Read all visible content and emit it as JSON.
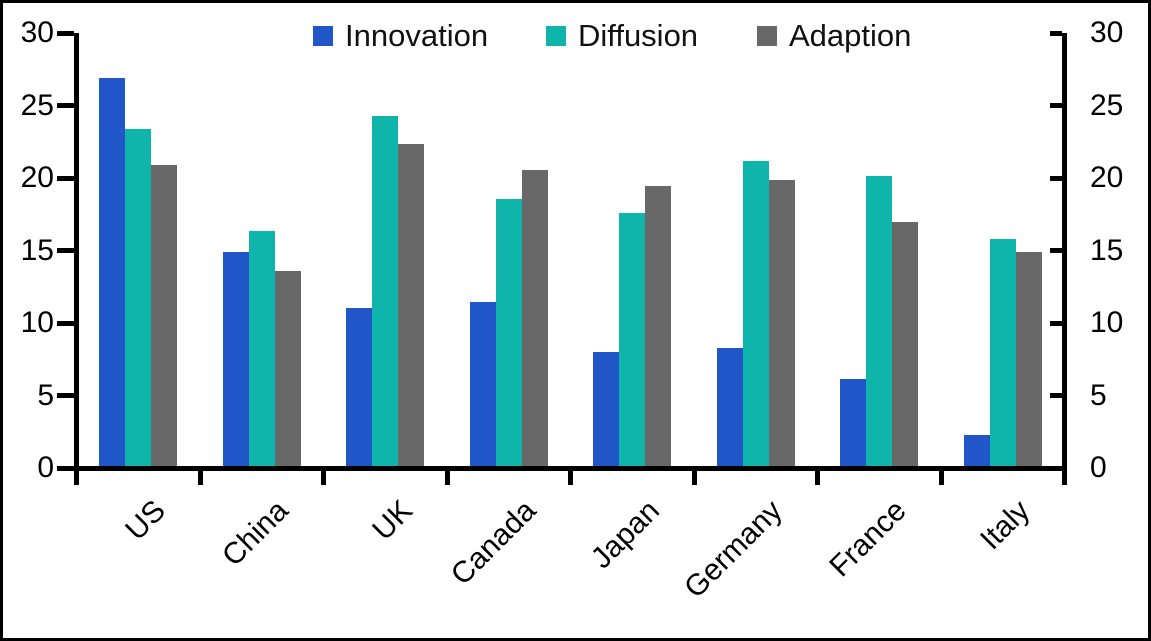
{
  "chart_data": {
    "type": "bar",
    "categories": [
      "US",
      "China",
      "UK",
      "Canada",
      "Japan",
      "Germany",
      "France",
      "Italy"
    ],
    "series": [
      {
        "name": "Innovation",
        "color": "#2156C8",
        "values": [
          26.8,
          14.8,
          11.0,
          11.4,
          7.9,
          8.2,
          6.1,
          2.2
        ]
      },
      {
        "name": "Diffusion",
        "color": "#0FB5AA",
        "values": [
          23.3,
          16.3,
          24.2,
          18.5,
          17.5,
          21.1,
          20.1,
          15.7
        ]
      },
      {
        "name": "Adaption",
        "color": "#686868",
        "values": [
          20.8,
          13.5,
          22.3,
          20.5,
          19.4,
          19.8,
          16.9,
          14.8
        ]
      }
    ],
    "title": "",
    "xlabel": "",
    "ylabel": "",
    "ylim": [
      0,
      30
    ],
    "yticks": [
      0,
      5,
      10,
      15,
      20,
      25,
      30
    ],
    "y_axis": "dual",
    "grid": false,
    "legend_position": "top",
    "axis_color": "#000000",
    "background_color": "#FFFFFF",
    "bar_orientation": "vertical"
  }
}
